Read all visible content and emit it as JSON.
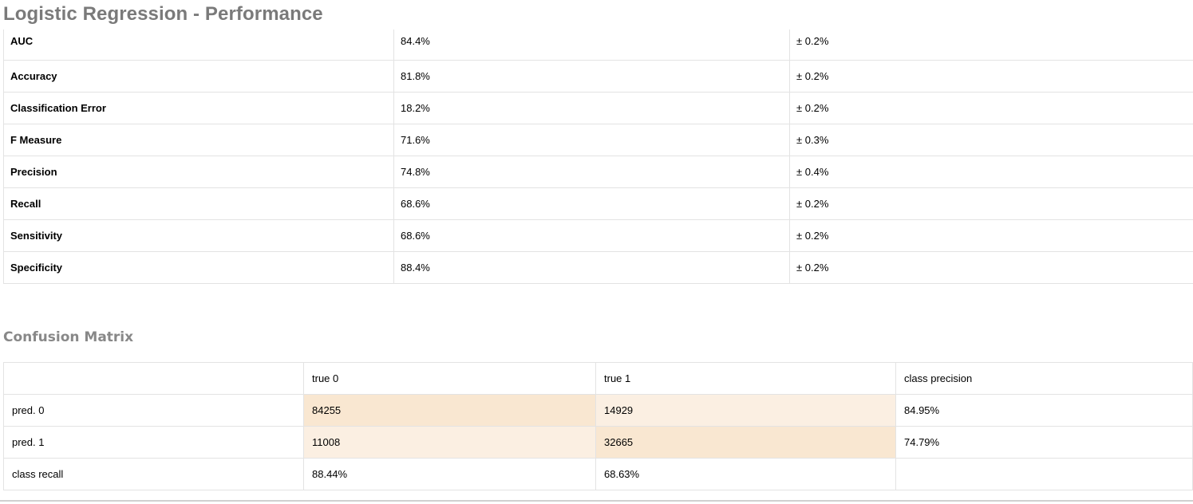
{
  "title": "Logistic Regression - Performance",
  "performance": {
    "rows": [
      {
        "metric": "AUC",
        "value": "84.4%",
        "deviation": "± 0.2%"
      },
      {
        "metric": "Accuracy",
        "value": "81.8%",
        "deviation": "± 0.2%"
      },
      {
        "metric": "Classification Error",
        "value": "18.2%",
        "deviation": "± 0.2%"
      },
      {
        "metric": "F Measure",
        "value": "71.6%",
        "deviation": "± 0.3%"
      },
      {
        "metric": "Precision",
        "value": "74.8%",
        "deviation": "± 0.4%"
      },
      {
        "metric": "Recall",
        "value": "68.6%",
        "deviation": "± 0.2%"
      },
      {
        "metric": "Sensitivity",
        "value": "68.6%",
        "deviation": "± 0.2%"
      },
      {
        "metric": "Specificity",
        "value": "88.4%",
        "deviation": "± 0.2%"
      }
    ]
  },
  "confusion_matrix": {
    "title": "Confusion Matrix",
    "header": [
      "",
      "true 0",
      "true 1",
      "class precision"
    ],
    "rows": [
      [
        "pred. 0",
        "84255",
        "14929",
        "84.95%"
      ],
      [
        "pred. 1",
        "11008",
        "32665",
        "74.79%"
      ],
      [
        "class recall",
        "88.44%",
        "68.63%",
        ""
      ]
    ],
    "colors": {
      "high": "#f9e7d1",
      "low": "#fbefe2"
    }
  }
}
